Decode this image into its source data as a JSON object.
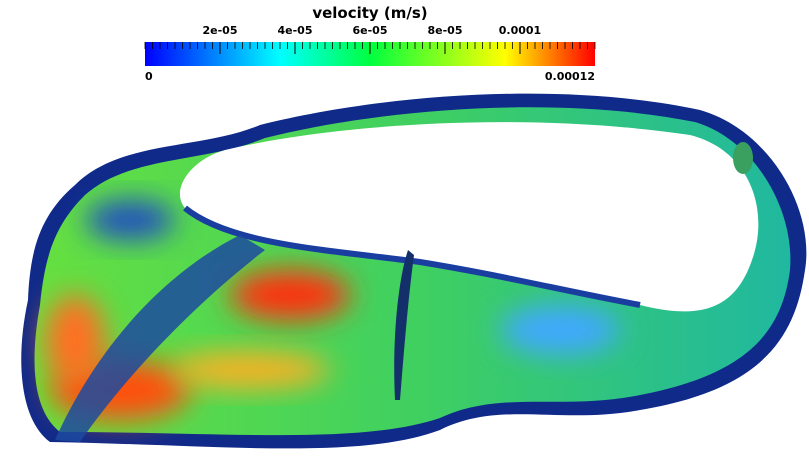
{
  "colorbar": {
    "title": "velocity (m/s)",
    "range": [
      0,
      0.00012
    ],
    "ticks": [
      {
        "value": 2e-05,
        "label": "2e-05"
      },
      {
        "value": 4e-05,
        "label": "4e-05"
      },
      {
        "value": 6e-05,
        "label": "6e-05"
      },
      {
        "value": 8e-05,
        "label": "8e-05"
      },
      {
        "value": 0.0001,
        "label": "0.0001"
      }
    ]
  }
}
